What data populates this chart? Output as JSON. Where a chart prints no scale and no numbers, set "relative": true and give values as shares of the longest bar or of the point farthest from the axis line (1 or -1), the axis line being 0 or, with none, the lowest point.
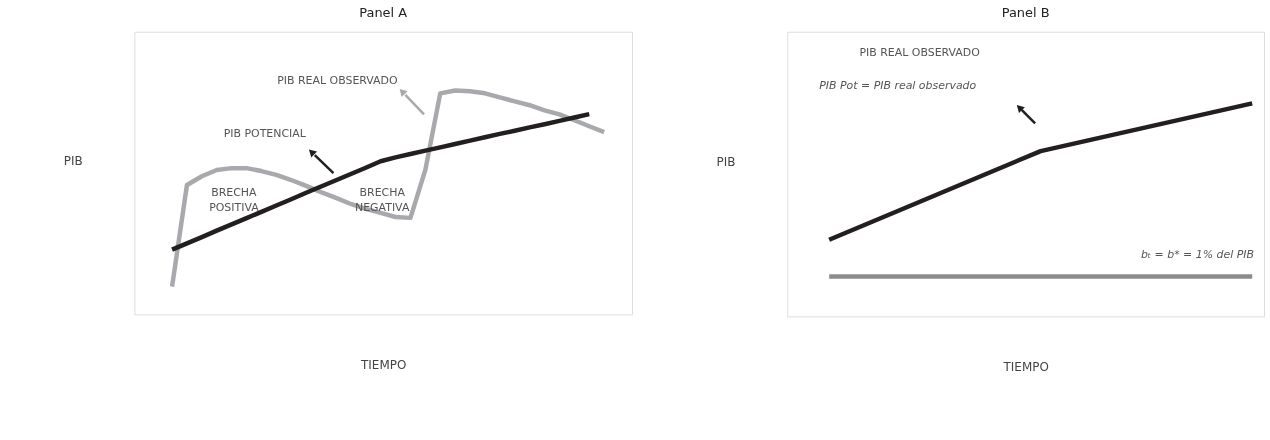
{
  "chart_data": [
    {
      "type": "line",
      "title": "Panel A",
      "xlabel": "TIEMPO",
      "ylabel": "PIB",
      "relative": true,
      "categories": [
        null,
        null,
        null,
        null,
        null,
        null,
        null,
        null,
        null,
        null,
        null,
        null,
        null,
        null,
        null,
        null,
        null,
        null,
        null,
        null,
        null,
        null,
        null,
        null,
        null,
        null,
        null,
        null,
        null,
        null
      ],
      "series": [
        {
          "color": "#a7a9ac",
          "values": [
            0.124,
            0.578,
            0.617,
            0.645,
            0.653,
            0.653,
            0.64,
            0.623,
            0.6,
            0.574,
            0.546,
            0.52,
            0.493,
            0.471,
            0.453,
            0.435,
            0.431,
            0.645,
            0.987,
            1,
            0.996,
            0.987,
            0.969,
            0.951,
            0.934,
            0.911,
            0.893,
            0.867,
            0.84,
            0.814
          ]
        },
        {
          "color": "#231f20",
          "values": [
            0.289,
            0.317,
            0.345,
            0.374,
            0.402,
            0.43,
            0.458,
            0.486,
            0.514,
            0.543,
            0.571,
            0.599,
            0.627,
            0.655,
            0.684,
            0.701,
            0.716,
            0.731,
            0.746,
            0.761,
            0.776,
            0.791,
            0.806,
            0.82,
            0.835,
            0.849,
            0.864,
            0.879,
            0.894,
            null
          ]
        }
      ],
      "annotations": [
        "PIB REAL OBSERVADO",
        "PIB POTENCIAL",
        "BRECHA POSITIVA",
        "BRECHA NEGATIVA"
      ]
    },
    {
      "type": "line",
      "title": "Panel B",
      "xlabel": "TIEMPO",
      "ylabel": "PIB",
      "relative": true,
      "categories": [
        null,
        null,
        null
      ],
      "series": [
        {
          "color": "#8a8c8e",
          "values": [
            0.187,
            0.187,
            0.187
          ]
        },
        {
          "color": "#231f20",
          "values": [
            0.36,
            0.776,
            1
          ]
        }
      ],
      "annotations": [
        "PIB REAL OBSERVADO",
        "PIB Pot = PIB real observado",
        "bₜ = b* = 1% del PIB"
      ]
    }
  ]
}
